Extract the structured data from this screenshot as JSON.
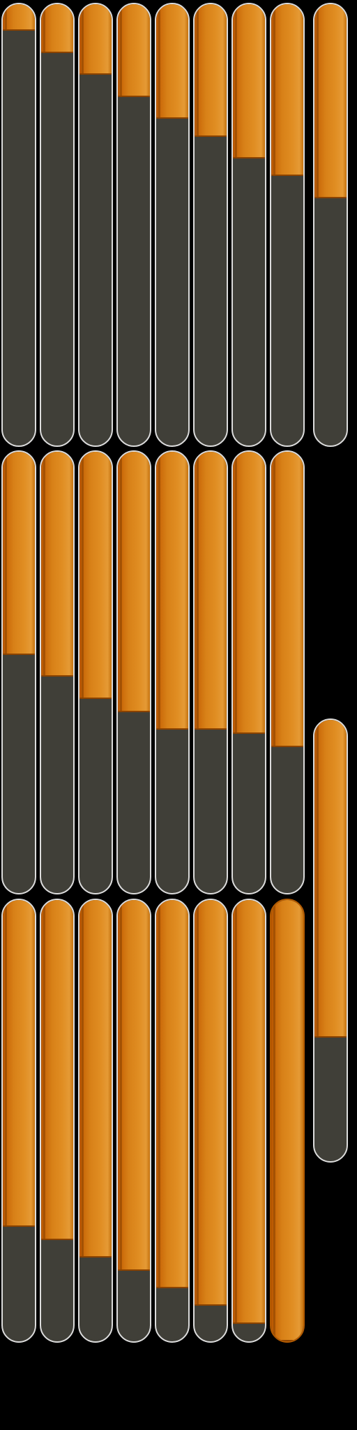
{
  "meters": {
    "track_color": "#403f38",
    "fill_color": "#d88118",
    "outline_color": "#dcdcdc",
    "rows": [
      [
        0.06,
        0.11,
        0.16,
        0.21,
        0.26,
        0.3,
        0.35,
        0.39
      ],
      [
        0.46,
        0.51,
        0.56,
        0.59,
        0.63,
        0.63,
        0.64,
        0.67
      ],
      [
        0.74,
        0.77,
        0.81,
        0.84,
        0.88,
        0.92,
        0.96,
        1.0
      ]
    ],
    "side": [
      0.44,
      0.72
    ]
  }
}
